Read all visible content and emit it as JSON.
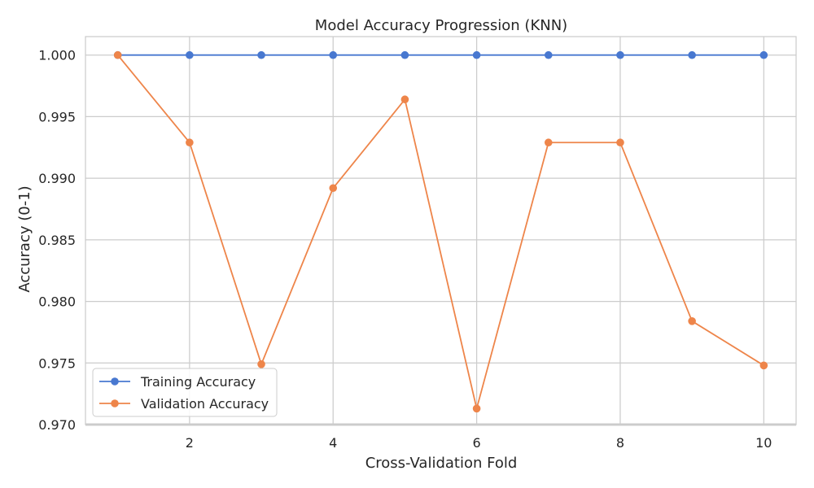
{
  "chart_data": {
    "type": "line",
    "title": "Model Accuracy Progression (KNN)",
    "xlabel": "Cross-Validation Fold",
    "ylabel": "Accuracy (0-1)",
    "x": [
      1,
      2,
      3,
      4,
      5,
      6,
      7,
      8,
      9,
      10
    ],
    "xlim": [
      0.55,
      10.45
    ],
    "ylim": [
      0.97,
      1.0015
    ],
    "xticks": [
      2,
      4,
      6,
      8,
      10
    ],
    "xtick_labels": [
      "2",
      "4",
      "6",
      "8",
      "10"
    ],
    "yticks": [
      0.97,
      0.975,
      0.98,
      0.985,
      0.99,
      0.995,
      1.0
    ],
    "ytick_labels": [
      "0.970",
      "0.975",
      "0.980",
      "0.985",
      "0.990",
      "0.995",
      "1.000"
    ],
    "grid": true,
    "legend_position": "lower-left",
    "series": [
      {
        "name": "Training Accuracy",
        "color": "#4878d0",
        "marker": "circle",
        "values": [
          1.0,
          1.0,
          1.0,
          1.0,
          1.0,
          1.0,
          1.0,
          1.0,
          1.0,
          1.0
        ]
      },
      {
        "name": "Validation Accuracy",
        "color": "#ee854a",
        "marker": "circle",
        "values": [
          1.0,
          0.9929,
          0.9749,
          0.9892,
          0.9964,
          0.9713,
          0.9929,
          0.9929,
          0.9784,
          0.9748
        ]
      }
    ]
  }
}
